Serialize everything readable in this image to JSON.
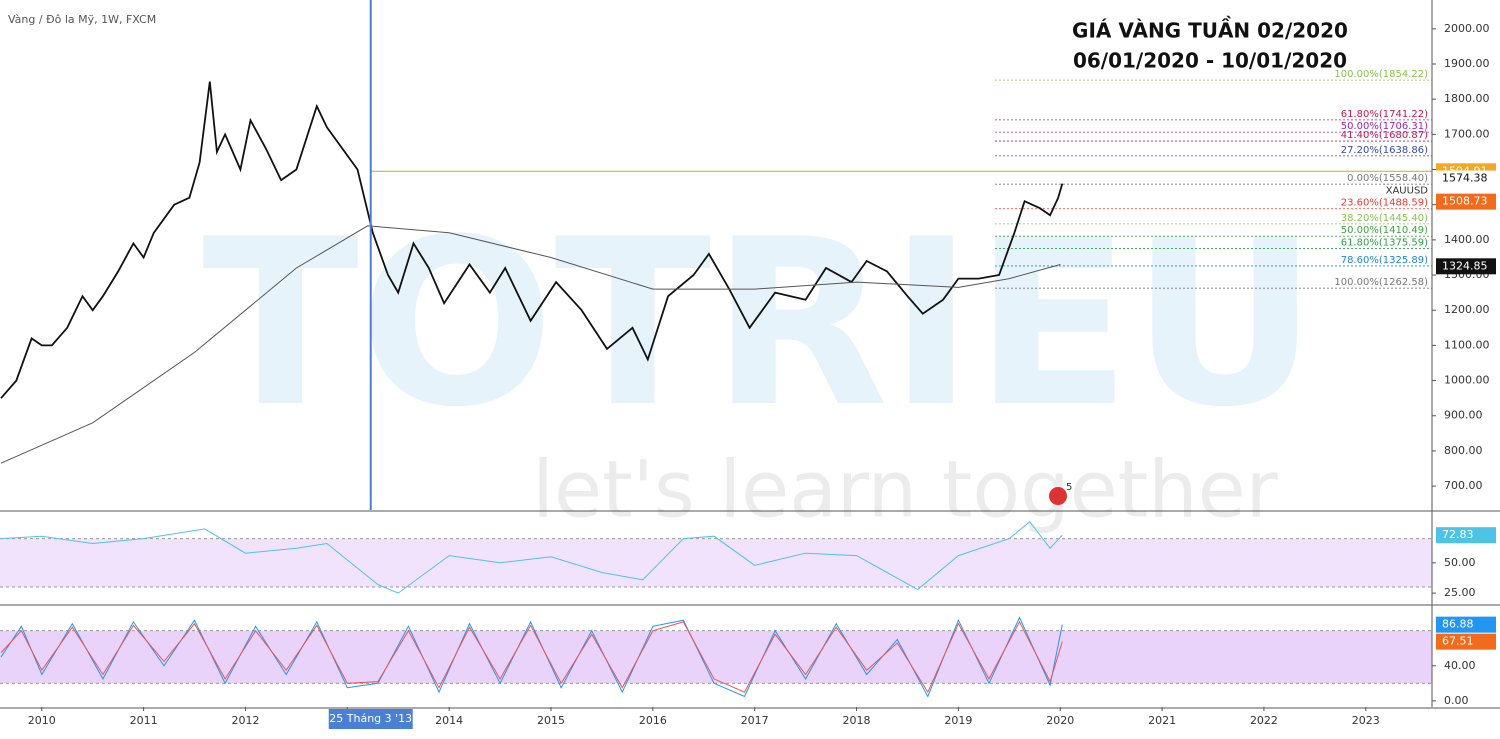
{
  "chart_data": [
    {
      "type": "line",
      "title": "GIÁ VÀNG TUẦN 02/2020",
      "subtitle": "06/01/2020 - 10/01/2020",
      "source": "Vàng / Đô la Mỹ, 1W, FXCM",
      "watermark": [
        "TOTRIEU",
        "let's learn together"
      ],
      "badge": "5",
      "xlim": [
        2009.59,
        2023.65
      ],
      "xticks": [
        2010,
        2011,
        2012,
        2013,
        2014,
        2015,
        2016,
        2017,
        2018,
        2019,
        2020,
        2021,
        2022,
        2023
      ],
      "ylim": [
        632,
        2082
      ],
      "yticks": [
        {
          "value": 700,
          "label": "700.00"
        },
        {
          "value": 800,
          "label": "800.00"
        },
        {
          "value": 900,
          "label": "900.00"
        },
        {
          "value": 1000,
          "label": "1000.00"
        },
        {
          "value": 1100,
          "label": "1100.00"
        },
        {
          "value": 1200,
          "label": "1200.00"
        },
        {
          "value": 1300,
          "label": "1300.00"
        },
        {
          "value": 1400,
          "label": "1400.00"
        },
        {
          "value": 1500,
          "label": "1500.00"
        },
        {
          "value": 1600,
          "label": "1600.00"
        },
        {
          "value": 1700,
          "label": "1700.00"
        },
        {
          "value": 1800,
          "label": "1800.00"
        },
        {
          "value": 1900,
          "label": "1900.00"
        },
        {
          "value": 2000,
          "label": "2000.00"
        }
      ],
      "crosshair": {
        "x": 2013.23,
        "label": "25 Tháng 3 '13",
        "color": "#4a7fd6"
      },
      "hline": {
        "value": 1594.91,
        "color": "#d4b23a"
      },
      "series": [
        {
          "name": "XAUUSD",
          "color": "#111111",
          "x": [
            2009.6,
            2009.75,
            2009.9,
            2010.0,
            2010.1,
            2010.25,
            2010.4,
            2010.5,
            2010.6,
            2010.75,
            2010.9,
            2011.0,
            2011.1,
            2011.3,
            2011.45,
            2011.55,
            2011.65,
            2011.72,
            2011.8,
            2011.95,
            2012.05,
            2012.2,
            2012.35,
            2012.5,
            2012.7,
            2012.8,
            2012.95,
            2013.1,
            2013.25,
            2013.4,
            2013.5,
            2013.65,
            2013.8,
            2013.95,
            2014.2,
            2014.4,
            2014.55,
            2014.8,
            2015.05,
            2015.3,
            2015.55,
            2015.8,
            2015.95,
            2016.15,
            2016.4,
            2016.55,
            2016.75,
            2016.95,
            2017.2,
            2017.5,
            2017.7,
            2017.95,
            2018.1,
            2018.3,
            2018.5,
            2018.65,
            2018.85,
            2019.0,
            2019.2,
            2019.4,
            2019.55,
            2019.65,
            2019.8,
            2019.9,
            2019.98,
            2020.02
          ],
          "values": [
            950,
            1000,
            1120,
            1100,
            1100,
            1150,
            1240,
            1200,
            1240,
            1310,
            1390,
            1350,
            1420,
            1500,
            1520,
            1620,
            1850,
            1650,
            1700,
            1600,
            1740,
            1660,
            1570,
            1600,
            1780,
            1720,
            1660,
            1600,
            1420,
            1300,
            1250,
            1390,
            1320,
            1220,
            1330,
            1250,
            1320,
            1170,
            1280,
            1200,
            1090,
            1150,
            1060,
            1240,
            1300,
            1360,
            1260,
            1150,
            1250,
            1230,
            1320,
            1280,
            1340,
            1310,
            1240,
            1190,
            1230,
            1290,
            1290,
            1300,
            1420,
            1510,
            1490,
            1470,
            1520,
            1560
          ]
        },
        {
          "color": "#555555",
          "x": [
            2009.6,
            2010.5,
            2011.5,
            2012.5,
            2013.2,
            2014.0,
            2015.0,
            2016.0,
            2017.0,
            2018.0,
            2019.0,
            2019.5,
            2020.0
          ],
          "values": [
            765,
            880,
            1080,
            1320,
            1440,
            1420,
            1350,
            1260,
            1260,
            1280,
            1265,
            1290,
            1330
          ]
        }
      ],
      "fib_levels": [
        {
          "label": "100.00%(1854.22)",
          "value": 1854.22,
          "color": "#8bc34a"
        },
        {
          "label": "61.80%(1741.22)",
          "value": 1741.22,
          "color": "#c2185b"
        },
        {
          "label": "50.00%(1706.31)",
          "value": 1706.31,
          "color": "#9c27b0"
        },
        {
          "label": "41.40%(1680.87)",
          "value": 1680.87,
          "color": "#c2185b"
        },
        {
          "label": "27.20%(1638.86)",
          "value": 1638.86,
          "color": "#3949ab"
        },
        {
          "label": "0.00%(1558.40)",
          "value": 1558.4,
          "color": "#777777"
        },
        {
          "label": "23.60%(1488.59)",
          "value": 1488.59,
          "color": "#e53935"
        },
        {
          "label": "38.20%(1445.40)",
          "value": 1445.4,
          "color": "#8bc34a"
        },
        {
          "label": "50.00%(1410.49)",
          "value": 1410.49,
          "color": "#43a047"
        },
        {
          "label": "61.80%(1375.59)",
          "value": 1375.59,
          "color": "#2e9e4e"
        },
        {
          "label": "78.60%(1325.89)",
          "value": 1325.89,
          "color": "#1e88c5"
        },
        {
          "label": "100.00%(1262.58)",
          "value": 1262.58,
          "color": "#777777"
        }
      ],
      "price_tags": [
        {
          "value": 1594.91,
          "color": "#f5a623"
        },
        {
          "value": 1574.38,
          "color": "#ffffff"
        },
        {
          "value": 1508.73,
          "color": "#f26b1d"
        },
        {
          "value": 1324.85,
          "color": "#111111"
        }
      ]
    },
    {
      "type": "line",
      "xlim": [
        2009.59,
        2023.65
      ],
      "ylim": [
        16,
        92
      ],
      "band": [
        30,
        70
      ],
      "yticks": [
        {
          "value": 25,
          "label": "25.00"
        },
        {
          "value": 50,
          "label": "50.00"
        }
      ],
      "series": [
        {
          "color": "#4dc3e6",
          "x": [
            2009.6,
            2010.0,
            2010.5,
            2011.0,
            2011.6,
            2012.0,
            2012.5,
            2012.8,
            2013.3,
            2013.5,
            2014.0,
            2014.5,
            2015.0,
            2015.5,
            2015.9,
            2016.3,
            2016.6,
            2017.0,
            2017.5,
            2018.0,
            2018.6,
            2019.0,
            2019.5,
            2019.7,
            2019.9,
            2020.02
          ],
          "values": [
            70,
            72,
            66,
            70,
            78,
            58,
            62,
            66,
            32,
            25,
            56,
            50,
            55,
            42,
            36,
            70,
            72,
            48,
            58,
            56,
            28,
            56,
            70,
            84,
            62,
            72.83
          ]
        }
      ],
      "price_tags": [
        {
          "value": 72.83,
          "color": "#4dc3e6"
        }
      ]
    },
    {
      "type": "line",
      "xlim": [
        2009.59,
        2023.65
      ],
      "ylim": [
        -7,
        107
      ],
      "band": [
        20,
        80
      ],
      "yticks": [
        {
          "value": 0,
          "label": "0.00"
        },
        {
          "value": 40,
          "label": "40.00"
        }
      ],
      "series": [
        {
          "color": "#2196f3",
          "x": [
            2009.6,
            2009.8,
            2010.0,
            2010.3,
            2010.6,
            2010.9,
            2011.2,
            2011.5,
            2011.8,
            2012.1,
            2012.4,
            2012.7,
            2013.0,
            2013.3,
            2013.6,
            2013.9,
            2014.2,
            2014.5,
            2014.8,
            2015.1,
            2015.4,
            2015.7,
            2016.0,
            2016.3,
            2016.6,
            2016.9,
            2017.2,
            2017.5,
            2017.8,
            2018.1,
            2018.4,
            2018.7,
            2019.0,
            2019.3,
            2019.6,
            2019.9,
            2020.02
          ],
          "values": [
            50,
            85,
            30,
            88,
            25,
            90,
            40,
            92,
            20,
            85,
            30,
            90,
            15,
            20,
            85,
            10,
            88,
            20,
            90,
            15,
            80,
            10,
            85,
            92,
            20,
            5,
            80,
            25,
            88,
            30,
            70,
            5,
            92,
            20,
            95,
            18,
            86.88
          ]
        },
        {
          "color": "#ef5350",
          "x": [
            2009.6,
            2009.8,
            2010.0,
            2010.3,
            2010.6,
            2010.9,
            2011.2,
            2011.5,
            2011.8,
            2012.1,
            2012.4,
            2012.7,
            2013.0,
            2013.3,
            2013.6,
            2013.9,
            2014.2,
            2014.5,
            2014.8,
            2015.1,
            2015.4,
            2015.7,
            2016.0,
            2016.3,
            2016.6,
            2016.9,
            2017.2,
            2017.5,
            2017.8,
            2018.1,
            2018.4,
            2018.7,
            2019.0,
            2019.3,
            2019.6,
            2019.9,
            2020.02
          ],
          "values": [
            55,
            80,
            35,
            84,
            30,
            86,
            45,
            88,
            25,
            80,
            35,
            86,
            20,
            22,
            80,
            15,
            84,
            25,
            86,
            20,
            76,
            15,
            80,
            90,
            25,
            10,
            76,
            30,
            84,
            35,
            66,
            10,
            88,
            25,
            90,
            22,
            67.51
          ]
        }
      ],
      "price_tags": [
        {
          "value": 86.88,
          "color": "#2196f3"
        },
        {
          "value": 67.51,
          "color": "#f26b1d"
        }
      ]
    }
  ]
}
